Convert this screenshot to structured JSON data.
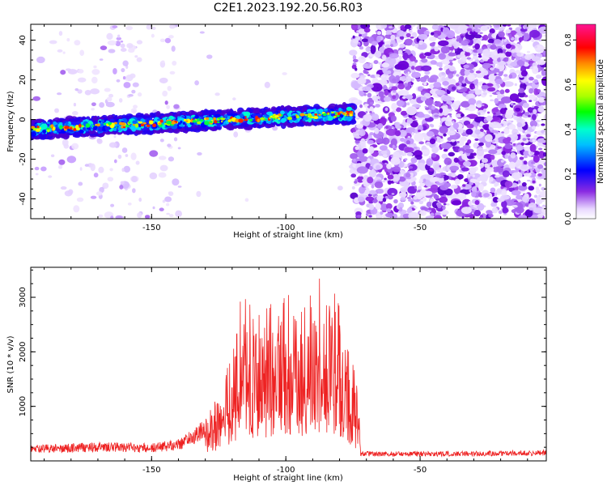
{
  "chart_data": [
    {
      "type": "heatmap",
      "title": "C2E1.2023.192.20.56.R03",
      "xlabel": "Height of straight line (km)",
      "ylabel": "Frequency (Hz)",
      "xlim": [
        -195,
        -3
      ],
      "ylim": [
        -50,
        48
      ],
      "x_ticks": [
        -150,
        -100,
        -50
      ],
      "x_tick_labels": [
        "-150",
        "-100",
        "-50"
      ],
      "y_ticks": [
        40,
        20,
        0,
        -20,
        -40
      ],
      "y_tick_labels": [
        "40",
        "20",
        "0",
        "-20",
        "-40"
      ],
      "colorbar": {
        "label": "Normalized spectral amplitude",
        "range": [
          0,
          0.87
        ],
        "ticks": [
          0.0,
          0.2,
          0.4,
          0.6,
          0.8
        ],
        "tick_labels": [
          "0.0",
          "0.2",
          "0.4",
          "0.6",
          "0.8"
        ],
        "colormap": "rainbow (white-violet-blue-cyan-green-yellow-red-magenta)"
      },
      "features": {
        "signal_band": {
          "x_range": [
            -195,
            -75
          ],
          "frequency_start_hz": -5,
          "frequency_end_hz": 3,
          "peak_amplitude": 0.85
        },
        "noise_region": {
          "x_range": [
            -75,
            -3
          ],
          "level": "high broadband noise"
        }
      }
    },
    {
      "type": "line",
      "xlabel": "Height of straight line (km)",
      "ylabel": "SNR (10 * v/v)",
      "xlim": [
        -195,
        -3
      ],
      "ylim": [
        0,
        3550
      ],
      "x_ticks": [
        -150,
        -100,
        -50
      ],
      "x_tick_labels": [
        "-150",
        "-100",
        "-50"
      ],
      "y_ticks": [
        1000,
        2000,
        3000
      ],
      "y_tick_labels": [
        "1000",
        "2000",
        "3000"
      ],
      "color": "#ee2222",
      "key_points": {
        "x": [
          -195,
          -170,
          -150,
          -140,
          -132,
          -128,
          -120,
          -117,
          -112,
          -105,
          -100,
          -95,
          -90,
          -87,
          -83,
          -80,
          -76,
          -73,
          -72,
          -50,
          -20,
          -3
        ],
        "y": [
          250,
          300,
          280,
          350,
          600,
          1000,
          2000,
          3100,
          2800,
          2900,
          3300,
          3000,
          3100,
          3550,
          3300,
          3000,
          2000,
          1300,
          150,
          150,
          160,
          180
        ]
      }
    }
  ]
}
